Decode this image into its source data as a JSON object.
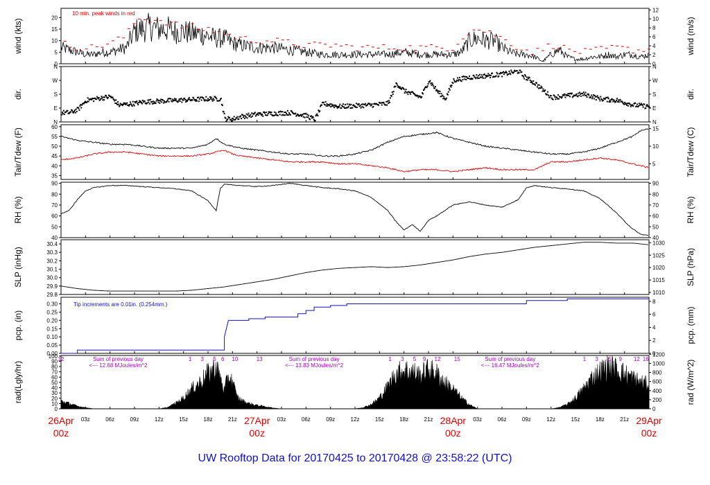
{
  "title": "UW Rooftop Data for 20170425  to  20170428 @ 23:58:22  (UTC)",
  "colors": {
    "black": "#000000",
    "red": "#e00000",
    "blue": "#1010c8",
    "purple": "#a000c0"
  },
  "time_axis": {
    "hours_total": 72,
    "minor_labels": [
      "03z",
      "06z",
      "09z",
      "12z",
      "15z",
      "18z",
      "21z"
    ],
    "day_labels": [
      {
        "hour": 0,
        "date": "26Apr",
        "time": "00z"
      },
      {
        "hour": 24,
        "date": "27Apr",
        "time": "00z"
      },
      {
        "hour": 48,
        "date": "28Apr",
        "time": "00z"
      },
      {
        "hour": 72,
        "date": "29Apr",
        "time": "00z"
      }
    ]
  },
  "chart_data": [
    {
      "type": "line",
      "id": "wind",
      "ylabel_left": "wind (kts)",
      "ylabel_right": "wind (m/s)",
      "ylim": [
        0,
        24
      ],
      "yticks_left": [
        0,
        5,
        10,
        15,
        20
      ],
      "ylim_right": [
        0,
        12.35
      ],
      "yticks_right": [
        0,
        2,
        4,
        6,
        8,
        10,
        12
      ],
      "annotation": "10 min. peak winds in red",
      "series": [
        {
          "color": "#000000",
          "x": [
            0,
            2,
            3,
            4,
            5,
            6,
            7,
            8,
            9,
            10,
            11,
            12,
            13,
            14,
            15,
            16,
            17,
            18,
            19,
            20,
            21,
            22,
            24,
            26,
            28,
            30,
            32,
            34,
            36,
            38,
            40,
            42,
            44,
            46,
            48,
            49,
            50,
            51,
            52,
            53,
            54,
            55,
            56,
            57,
            58,
            59,
            60,
            61,
            62,
            63,
            64,
            65,
            66,
            67,
            68,
            69,
            70,
            71,
            72
          ],
          "y": [
            7,
            5,
            4,
            4,
            5,
            5,
            6,
            7,
            14,
            15,
            16,
            15,
            15,
            14,
            14,
            13,
            13,
            12,
            11,
            11,
            9,
            8,
            7,
            7,
            6,
            5,
            4,
            4,
            4,
            4,
            4,
            5,
            4,
            4,
            4,
            5,
            10,
            11,
            10,
            10,
            7,
            5,
            4,
            4,
            3,
            1,
            4,
            6,
            3,
            2,
            2,
            3,
            3,
            4,
            3,
            4,
            4,
            3,
            4
          ]
        },
        {
          "color": "#e00000",
          "marker": "dash",
          "x": [
            0,
            2,
            4,
            6,
            8,
            9,
            10,
            11,
            12,
            13,
            14,
            15,
            16,
            17,
            18,
            19,
            20,
            21,
            22,
            24,
            26,
            28,
            30,
            32,
            34,
            36,
            38,
            40,
            42,
            44,
            46,
            48,
            49,
            50,
            51,
            52,
            53,
            54,
            56,
            58,
            60,
            61,
            62,
            64,
            66,
            68,
            70,
            72
          ],
          "y": [
            9,
            7,
            7,
            9,
            12,
            18,
            20,
            19,
            19,
            18,
            17,
            16,
            16,
            15,
            15,
            14,
            13,
            12,
            11,
            10,
            10,
            9,
            8,
            8,
            8,
            7,
            7,
            7,
            7,
            7,
            7,
            7,
            11,
            14,
            15,
            14,
            13,
            11,
            7,
            5,
            8,
            8,
            6,
            5,
            6,
            7,
            6,
            6
          ]
        }
      ]
    },
    {
      "type": "scatter",
      "id": "dir",
      "ylabel_left": "dir.",
      "ylabel_right": "dir.",
      "yticks_labels": [
        "N",
        "E",
        "S",
        "W",
        "N"
      ],
      "ylim": [
        0,
        360
      ]
    },
    {
      "type": "line",
      "id": "temp",
      "ylabel_left": "Tair/Tdew (F)",
      "ylabel_right": "Tair/Tdew (C)",
      "ylim": [
        33,
        61
      ],
      "yticks_left": [
        35,
        40,
        45,
        50,
        55,
        60
      ],
      "ylim_right": [
        0.556,
        16.11
      ],
      "yticks_right": [
        5,
        10,
        15
      ],
      "series": [
        {
          "name": "Tair",
          "color": "#000000",
          "x": [
            0,
            2,
            4,
            6,
            8,
            10,
            12,
            14,
            16,
            18,
            19,
            20,
            21,
            22,
            24,
            26,
            28,
            30,
            32,
            34,
            36,
            38,
            40,
            42,
            44,
            46,
            48,
            50,
            52,
            54,
            56,
            58,
            60,
            62,
            64,
            66,
            68,
            70,
            71,
            72
          ],
          "y": [
            55,
            53,
            52,
            51,
            51,
            50,
            49,
            49,
            49,
            51,
            54,
            51,
            50,
            49,
            48,
            47,
            46,
            46,
            45,
            45,
            46,
            48,
            52,
            55,
            56,
            57,
            54,
            52,
            50,
            49,
            48,
            47,
            46,
            46,
            47,
            49,
            52,
            55,
            58,
            59
          ]
        },
        {
          "name": "Tdew",
          "color": "#e00000",
          "x": [
            0,
            2,
            4,
            6,
            8,
            10,
            12,
            14,
            16,
            18,
            19,
            20,
            21,
            22,
            24,
            26,
            28,
            30,
            32,
            34,
            36,
            38,
            40,
            42,
            44,
            46,
            48,
            50,
            52,
            54,
            56,
            58,
            60,
            62,
            64,
            66,
            68,
            70,
            72
          ],
          "y": [
            43,
            44,
            46,
            47,
            47,
            46,
            45,
            45,
            45,
            46,
            47,
            48,
            46,
            45,
            44,
            43,
            42,
            42,
            42,
            41,
            41,
            40,
            39,
            37,
            38,
            38,
            37,
            38,
            39,
            38,
            38,
            38,
            42,
            42,
            43,
            44,
            43,
            41,
            39
          ]
        }
      ]
    },
    {
      "type": "line",
      "id": "rh",
      "ylabel_left": "RH (%)",
      "ylabel_right": "RH (%)",
      "ylim": [
        40,
        91
      ],
      "yticks": [
        40,
        50,
        60,
        70,
        80,
        90
      ],
      "series": [
        {
          "color": "#000000",
          "x": [
            0,
            1,
            2,
            3,
            4,
            6,
            8,
            10,
            12,
            14,
            16,
            18,
            19,
            19.5,
            20,
            22,
            24,
            26,
            28,
            30,
            32,
            34,
            36,
            38,
            40,
            41,
            42,
            43,
            44,
            45,
            46,
            47,
            48,
            50,
            52,
            54,
            56,
            57,
            58,
            60,
            62,
            64,
            66,
            68,
            69,
            70,
            71,
            72
          ],
          "y": [
            62,
            65,
            75,
            83,
            86,
            88,
            88,
            87,
            86,
            85,
            83,
            74,
            65,
            85,
            89,
            88,
            87,
            88,
            90,
            88,
            86,
            85,
            83,
            77,
            65,
            55,
            47,
            52,
            46,
            56,
            60,
            65,
            70,
            73,
            70,
            68,
            75,
            86,
            88,
            86,
            85,
            83,
            76,
            63,
            55,
            48,
            43,
            42
          ]
        }
      ]
    },
    {
      "type": "line",
      "id": "slp",
      "ylabel_left": "SLP (inHg)",
      "ylabel_right": "SLP (hPa)",
      "ylim": [
        29.8,
        30.45
      ],
      "yticks_left": [
        29.8,
        29.9,
        30.0,
        30.1,
        30.2,
        30.3,
        30.4
      ],
      "ylim_right": [
        1009.2,
        1031.2
      ],
      "yticks_right": [
        1010,
        1015,
        1020,
        1025,
        1030
      ],
      "series": [
        {
          "color": "#000000",
          "x": [
            0,
            2,
            4,
            6,
            8,
            10,
            12,
            14,
            16,
            18,
            20,
            22,
            24,
            26,
            28,
            30,
            32,
            34,
            36,
            38,
            40,
            42,
            44,
            46,
            48,
            50,
            52,
            54,
            56,
            58,
            60,
            62,
            64,
            66,
            68,
            70,
            72
          ],
          "y": [
            29.9,
            29.87,
            29.85,
            29.84,
            29.84,
            29.84,
            29.84,
            29.84,
            29.85,
            29.87,
            29.89,
            29.92,
            29.95,
            29.98,
            30.02,
            30.06,
            30.09,
            30.11,
            30.12,
            30.13,
            30.12,
            30.13,
            30.15,
            30.18,
            30.21,
            30.25,
            30.28,
            30.3,
            30.33,
            30.36,
            30.38,
            30.4,
            30.42,
            30.42,
            30.41,
            30.41,
            30.39
          ]
        }
      ]
    },
    {
      "type": "line",
      "id": "pcp",
      "ylabel_left": "pcp. (in)",
      "ylabel_right": "pcp. (mm)",
      "ylim": [
        0,
        0.34
      ],
      "yticks_left": [
        0,
        0.05,
        0.1,
        0.15,
        0.2,
        0.25,
        0.3
      ],
      "ylim_right": [
        0,
        8.636
      ],
      "yticks_right": [
        0,
        2,
        4,
        6,
        8
      ],
      "annotation": "Tip increments are 0.01in. (0.254mm.)",
      "series": [
        {
          "color": "#1010c8",
          "step": true,
          "x": [
            0,
            2,
            2,
            20,
            20,
            20.5,
            20.5,
            23,
            23,
            25,
            25,
            29,
            29,
            30,
            30,
            31,
            31,
            33,
            33,
            35,
            35,
            50,
            50,
            57,
            57,
            62,
            62,
            72
          ],
          "y": [
            0,
            0,
            0.02,
            0.02,
            0.1,
            0.2,
            0.2,
            0.2,
            0.21,
            0.21,
            0.22,
            0.22,
            0.24,
            0.24,
            0.26,
            0.26,
            0.28,
            0.28,
            0.29,
            0.29,
            0.3,
            0.3,
            0.3,
            0.3,
            0.32,
            0.32,
            0.33,
            0.33
          ]
        }
      ]
    },
    {
      "type": "area",
      "id": "rad",
      "ylabel_left": "rad(Lgly/hr)",
      "ylabel_right": "rad (W/m^2)",
      "ylim": [
        0,
        101
      ],
      "yticks_left": [
        0,
        10,
        20,
        30,
        40,
        50,
        60,
        70,
        80,
        90,
        100
      ],
      "ylim_right": [
        0,
        1174
      ],
      "yticks_right": [
        0,
        200,
        400,
        600,
        800,
        1000,
        1200
      ],
      "hour_labels_top": [
        {
          "hour": 0,
          "text": "12"
        },
        {
          "hour": 15.8,
          "text": "1"
        },
        {
          "hour": 17.3,
          "text": "3"
        },
        {
          "hour": 18.8,
          "text": "5"
        },
        {
          "hour": 19.8,
          "text": "6"
        },
        {
          "hour": 21.3,
          "text": "10"
        },
        {
          "hour": 24.3,
          "text": "13"
        },
        {
          "hour": 40.3,
          "text": "1"
        },
        {
          "hour": 41.8,
          "text": "3"
        },
        {
          "hour": 43.3,
          "text": "5"
        },
        {
          "hour": 44.5,
          "text": "9"
        },
        {
          "hour": 46.1,
          "text": "12"
        },
        {
          "hour": 48.5,
          "text": "15"
        },
        {
          "hour": 64.1,
          "text": "1"
        },
        {
          "hour": 65.6,
          "text": "3"
        },
        {
          "hour": 67.2,
          "text": "5"
        },
        {
          "hour": 68.5,
          "text": "9"
        },
        {
          "hour": 70.5,
          "text": "12"
        },
        {
          "hour": 71.6,
          "text": "16"
        }
      ],
      "daily_notes": [
        {
          "hour": 7,
          "line1": "Sum of previous day",
          "line2": "<--- 12.68 MJoules/m^2"
        },
        {
          "hour": 31,
          "line1": "Sum of previous day",
          "line2": "<--- 13.83 MJoules/m^2"
        },
        {
          "hour": 55,
          "line1": "Sum of previous day",
          "line2": "<--- 16.47 MJoules/m^2"
        }
      ],
      "series": [
        {
          "color": "#000000",
          "x": [
            0,
            1,
            2,
            3,
            4,
            12,
            13,
            14,
            15,
            16,
            17,
            18,
            19,
            19.5,
            20,
            20.5,
            21,
            21.5,
            22,
            23,
            24,
            25,
            26,
            27,
            36,
            37,
            38,
            39,
            40,
            41,
            42,
            43,
            44,
            45,
            46,
            47,
            48,
            49,
            50,
            51,
            60,
            61,
            62,
            63,
            64,
            65,
            66,
            67,
            68,
            69,
            70,
            71,
            72
          ],
          "y": [
            18,
            12,
            6,
            3,
            0,
            0,
            3,
            12,
            25,
            45,
            60,
            80,
            95,
            70,
            40,
            75,
            60,
            30,
            20,
            12,
            8,
            5,
            2,
            0,
            0,
            3,
            10,
            25,
            50,
            80,
            88,
            85,
            75,
            90,
            80,
            60,
            45,
            25,
            10,
            0,
            0,
            3,
            10,
            25,
            45,
            70,
            85,
            95,
            90,
            80,
            70,
            60,
            55
          ]
        }
      ]
    }
  ]
}
